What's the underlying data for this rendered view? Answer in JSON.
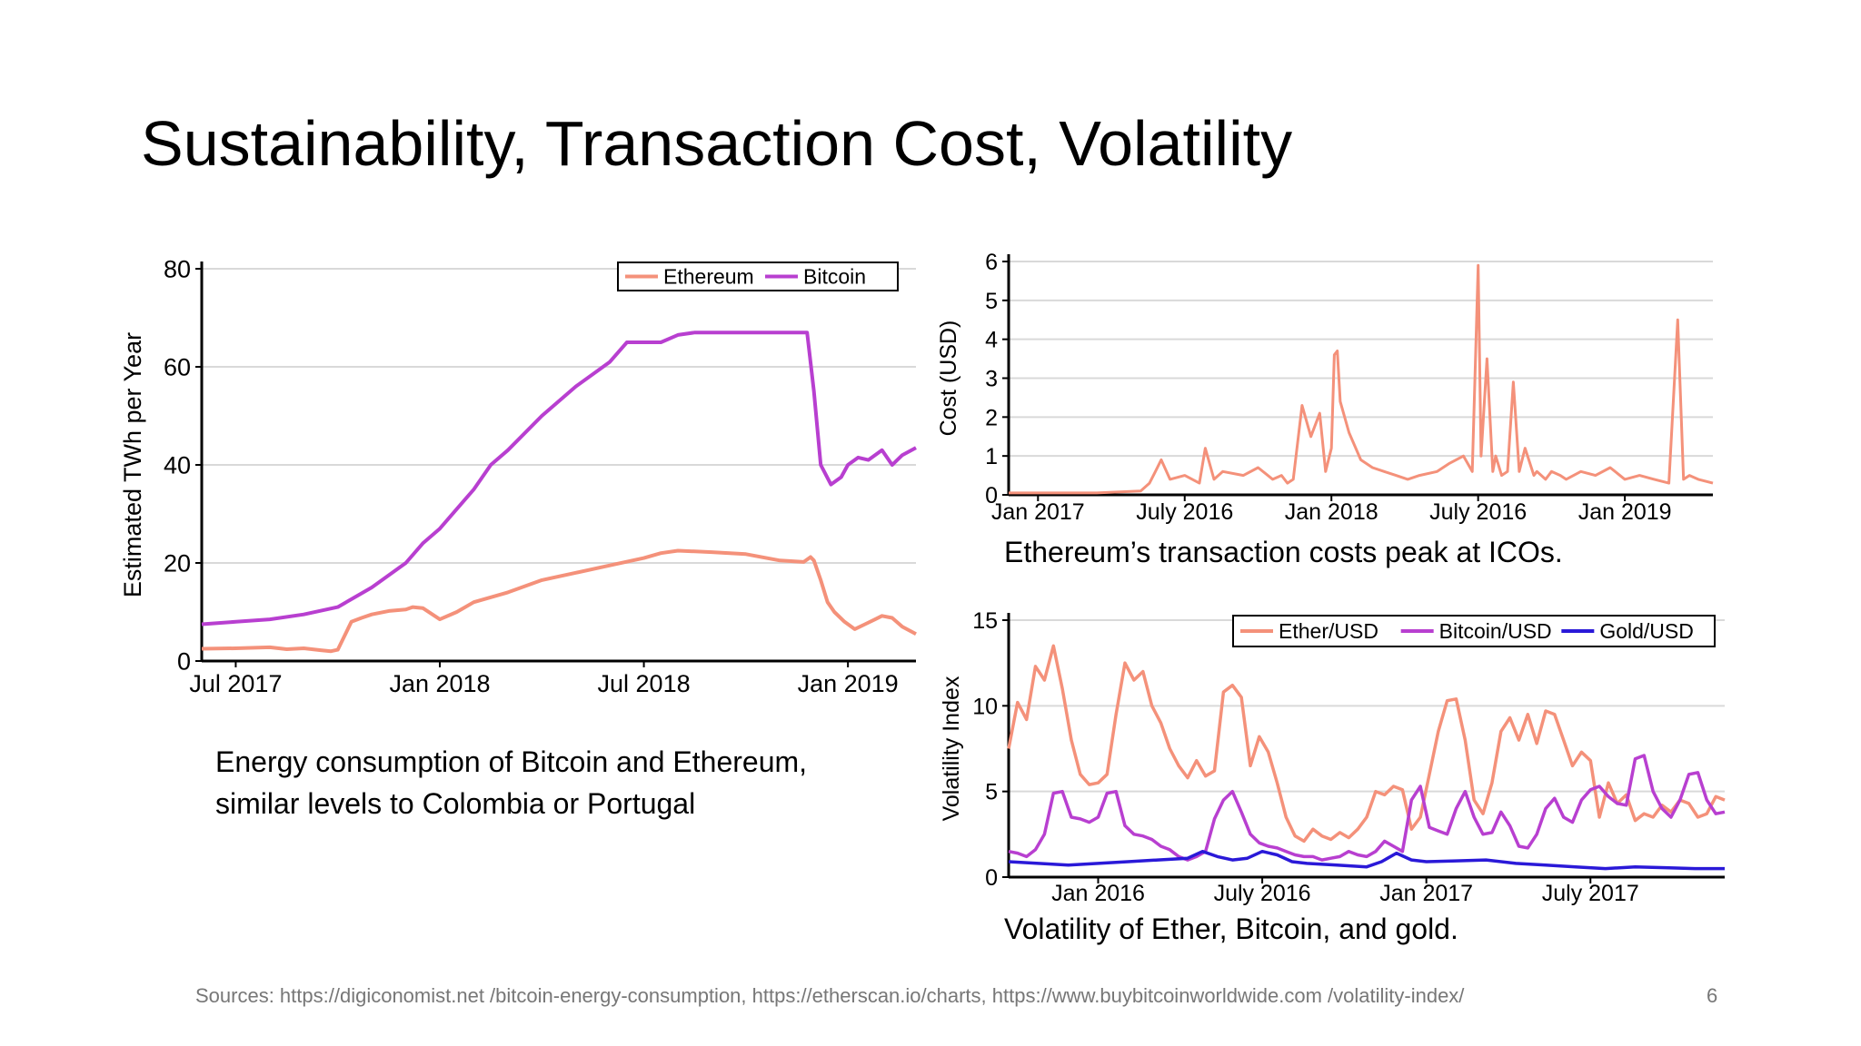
{
  "title": "Sustainability, Transaction Cost, Volatility",
  "captions": {
    "energy": "Energy consumption of Bitcoin and Ethereum, similar levels to Colombia or Portugal",
    "tx": "Ethereum’s transaction costs peak at ICOs.",
    "vol": "Volatility of Ether, Bitcoin, and gold."
  },
  "sources": "Sources: https://digiconomist.net /bitcoin-energy-consumption, https://etherscan.io/charts, https://www.buybitcoinworldwide.com /volatility-index/",
  "page_number": "6",
  "chart_data": [
    {
      "type": "line",
      "ylabel": "Estimated TWh per Year",
      "ylim": [
        0,
        80
      ],
      "yticks": [
        0,
        20,
        40,
        60,
        80
      ],
      "xlim": [
        0,
        21
      ],
      "xtick_labels": [
        {
          "x": 1,
          "label": "Jul 2017"
        },
        {
          "x": 7,
          "label": "Jan 2018"
        },
        {
          "x": 13,
          "label": "Jul 2018"
        },
        {
          "x": 19,
          "label": "Jan 2019"
        }
      ],
      "grid": true,
      "legend": "top-right",
      "series": [
        {
          "name": "Ethereum",
          "color": "#f4917a",
          "x": [
            0,
            1,
            2,
            2.5,
            3,
            3.5,
            3.8,
            4,
            4.4,
            4.7,
            5,
            5.5,
            6,
            6.2,
            6.5,
            7,
            7.5,
            8,
            9,
            10,
            11,
            12,
            13,
            13.5,
            14,
            15,
            16,
            17,
            17.7,
            17.9,
            18,
            18.2,
            18.4,
            18.6,
            18.9,
            19.2,
            19.5,
            19.8,
            20,
            20.3,
            20.6,
            21
          ],
          "y": [
            2.5,
            2.6,
            2.8,
            2.4,
            2.6,
            2.2,
            2.0,
            2.3,
            8,
            8.8,
            9.5,
            10.2,
            10.5,
            11,
            10.8,
            8.5,
            10,
            12,
            14,
            16.5,
            18,
            19.5,
            21,
            22,
            22.5,
            22.2,
            21.8,
            20.5,
            20.2,
            21.2,
            20.5,
            16.5,
            12,
            10,
            8,
            6.5,
            7.5,
            8.5,
            9.2,
            8.8,
            7,
            5.5
          ]
        },
        {
          "name": "Bitcoin",
          "color": "#b83fd0",
          "x": [
            0,
            1,
            2,
            3,
            4,
            5,
            6,
            6.5,
            7,
            7.5,
            8,
            8.5,
            9,
            10,
            11,
            12,
            12.5,
            13,
            13.5,
            14,
            14.5,
            15,
            16,
            17,
            17.8,
            18,
            18.2,
            18.5,
            18.8,
            19,
            19.3,
            19.6,
            20,
            20.3,
            20.6,
            21
          ],
          "y": [
            7.5,
            8,
            8.5,
            9.5,
            11,
            15,
            20,
            24,
            27,
            31,
            35,
            40,
            43,
            50,
            56,
            61,
            65,
            65,
            65,
            66.5,
            67,
            67,
            67,
            67,
            67,
            55,
            40,
            36,
            37.5,
            40,
            41.5,
            41,
            43,
            40,
            42,
            43.5
          ]
        }
      ]
    },
    {
      "type": "line",
      "ylabel": "Cost (USD)",
      "ylim": [
        0,
        6
      ],
      "yticks": [
        0,
        1,
        2,
        3,
        4,
        5,
        6
      ],
      "xlim": [
        0,
        24
      ],
      "xtick_labels": [
        {
          "x": 1,
          "label": "Jan 2017"
        },
        {
          "x": 6,
          "label": "July 2016"
        },
        {
          "x": 11,
          "label": "Jan 2018"
        },
        {
          "x": 16,
          "label": "July 2016"
        },
        {
          "x": 21,
          "label": "Jan 2019"
        }
      ],
      "grid": true,
      "series": [
        {
          "name": "",
          "color": "#f4917a",
          "x": [
            0,
            3,
            4.5,
            4.8,
            5,
            5.2,
            5.5,
            6,
            6.5,
            6.7,
            7,
            7.3,
            8,
            8.5,
            9,
            9.3,
            9.5,
            9.7,
            10,
            10.3,
            10.6,
            10.8,
            11,
            11.1,
            11.2,
            11.3,
            11.6,
            12,
            12.4,
            12.8,
            13.2,
            13.6,
            14,
            14.6,
            15,
            15.5,
            15.8,
            16,
            16.1,
            16.3,
            16.5,
            16.6,
            16.8,
            17,
            17.2,
            17.4,
            17.6,
            17.9,
            18,
            18.3,
            18.5,
            18.8,
            19,
            19.5,
            20,
            20.5,
            21,
            21.5,
            22,
            22.5,
            22.8,
            23,
            23.2,
            23.5,
            24
          ],
          "y": [
            0.05,
            0.05,
            0.1,
            0.3,
            0.6,
            0.9,
            0.4,
            0.5,
            0.3,
            1.2,
            0.4,
            0.6,
            0.5,
            0.7,
            0.4,
            0.5,
            0.3,
            0.4,
            2.3,
            1.5,
            2.1,
            0.6,
            1.2,
            3.6,
            3.7,
            2.4,
            1.6,
            0.9,
            0.7,
            0.6,
            0.5,
            0.4,
            0.5,
            0.6,
            0.8,
            1.0,
            0.6,
            5.9,
            1.0,
            3.5,
            0.6,
            1.0,
            0.5,
            0.6,
            2.9,
            0.6,
            1.2,
            0.5,
            0.6,
            0.4,
            0.6,
            0.5,
            0.4,
            0.6,
            0.5,
            0.7,
            0.4,
            0.5,
            0.4,
            0.3,
            4.5,
            0.4,
            0.5,
            0.4,
            0.3
          ]
        }
      ]
    },
    {
      "type": "line",
      "ylabel": "Volatility Index",
      "ylim": [
        0,
        15
      ],
      "yticks": [
        0,
        5,
        10,
        15
      ],
      "xlim": [
        0,
        24
      ],
      "xtick_labels": [
        {
          "x": 3,
          "label": "Jan 2016"
        },
        {
          "x": 8.5,
          "label": "July 2016"
        },
        {
          "x": 14,
          "label": "Jan 2017"
        },
        {
          "x": 19.5,
          "label": "July 2017"
        }
      ],
      "grid": true,
      "legend": "top-right",
      "series": [
        {
          "name": "Ether/USD",
          "color": "#f4917a",
          "x": [
            0,
            0.3,
            0.6,
            0.9,
            1.2,
            1.5,
            1.8,
            2.1,
            2.4,
            2.7,
            3,
            3.3,
            3.6,
            3.9,
            4.2,
            4.5,
            4.8,
            5.1,
            5.4,
            5.7,
            6,
            6.3,
            6.6,
            6.9,
            7.2,
            7.5,
            7.8,
            8.1,
            8.4,
            8.7,
            9,
            9.3,
            9.6,
            9.9,
            10.2,
            10.5,
            10.8,
            11.1,
            11.4,
            11.7,
            12,
            12.3,
            12.6,
            12.9,
            13.2,
            13.5,
            13.8,
            14.1,
            14.4,
            14.7,
            15,
            15.3,
            15.6,
            15.9,
            16.2,
            16.5,
            16.8,
            17.1,
            17.4,
            17.7,
            18,
            18.3,
            18.6,
            18.9,
            19.2,
            19.5,
            19.8,
            20.1,
            20.4,
            20.7,
            21,
            21.3,
            21.6,
            21.9,
            22.2,
            22.5,
            22.8,
            23.1,
            23.4,
            23.7,
            24
          ],
          "y": [
            7.5,
            10.2,
            9.2,
            12.3,
            11.5,
            13.5,
            11,
            8,
            6,
            5.4,
            5.5,
            6,
            9.5,
            12.5,
            11.5,
            12,
            10,
            9,
            7.5,
            6.5,
            5.8,
            6.8,
            5.9,
            6.2,
            10.8,
            11.2,
            10.5,
            6.5,
            8.2,
            7.3,
            5.5,
            3.5,
            2.4,
            2.1,
            2.8,
            2.4,
            2.2,
            2.6,
            2.3,
            2.8,
            3.5,
            5,
            4.8,
            5.3,
            5.1,
            2.8,
            3.5,
            6,
            8.5,
            10.3,
            10.4,
            8,
            4.5,
            3.7,
            5.5,
            8.5,
            9.3,
            8,
            9.5,
            7.8,
            9.7,
            9.5,
            8,
            6.5,
            7.3,
            6.8,
            3.5,
            5.5,
            4.3,
            4.8,
            3.3,
            3.7,
            3.5,
            4.2,
            3.8,
            4.5,
            4.3,
            3.5,
            3.7,
            4.7,
            4.5
          ]
        },
        {
          "name": "Bitcoin/USD",
          "color": "#b83fd0",
          "x": [
            0,
            0.3,
            0.6,
            0.9,
            1.2,
            1.5,
            1.8,
            2.1,
            2.4,
            2.7,
            3,
            3.3,
            3.6,
            3.9,
            4.2,
            4.5,
            4.8,
            5.1,
            5.4,
            5.7,
            6,
            6.3,
            6.6,
            6.9,
            7.2,
            7.5,
            7.8,
            8.1,
            8.4,
            8.7,
            9,
            9.3,
            9.6,
            9.9,
            10.2,
            10.5,
            10.8,
            11.1,
            11.4,
            11.7,
            12,
            12.3,
            12.6,
            12.9,
            13.2,
            13.5,
            13.8,
            14.1,
            14.4,
            14.7,
            15,
            15.3,
            15.6,
            15.9,
            16.2,
            16.5,
            16.8,
            17.1,
            17.4,
            17.7,
            18,
            18.3,
            18.6,
            18.9,
            19.2,
            19.5,
            19.8,
            20.1,
            20.4,
            20.7,
            21,
            21.3,
            21.6,
            21.9,
            22.2,
            22.5,
            22.8,
            23.1,
            23.4,
            23.7,
            24
          ],
          "y": [
            1.5,
            1.4,
            1.2,
            1.6,
            2.5,
            4.9,
            5,
            3.5,
            3.4,
            3.2,
            3.5,
            4.9,
            5,
            3,
            2.5,
            2.4,
            2.2,
            1.8,
            1.6,
            1.2,
            1.0,
            1.2,
            1.5,
            3.4,
            4.5,
            5,
            3.8,
            2.5,
            2,
            1.8,
            1.7,
            1.5,
            1.3,
            1.2,
            1.2,
            1.0,
            1.1,
            1.2,
            1.5,
            1.3,
            1.2,
            1.5,
            2.1,
            1.8,
            1.5,
            4.5,
            5.3,
            2.9,
            2.7,
            2.5,
            4.0,
            5,
            3.5,
            2.5,
            2.6,
            3.8,
            3,
            1.8,
            1.7,
            2.5,
            4,
            4.6,
            3.5,
            3.2,
            4.5,
            5.1,
            5.3,
            4.7,
            4.3,
            4.2,
            6.9,
            7.1,
            5,
            4,
            3.5,
            4.5,
            6,
            6.1,
            4.5,
            3.7,
            3.8
          ]
        },
        {
          "name": "Gold/USD",
          "color": "#2a19d8",
          "x": [
            0,
            1,
            2,
            3,
            4,
            5,
            6,
            6.5,
            7,
            7.5,
            8,
            8.5,
            9,
            9.5,
            10,
            11,
            12,
            12.5,
            13,
            13.5,
            14,
            15,
            16,
            17,
            18,
            19,
            20,
            21,
            22,
            23,
            24
          ],
          "y": [
            0.9,
            0.8,
            0.7,
            0.8,
            0.9,
            1.0,
            1.1,
            1.5,
            1.2,
            1.0,
            1.1,
            1.5,
            1.3,
            0.9,
            0.8,
            0.7,
            0.6,
            0.9,
            1.4,
            1.0,
            0.9,
            0.95,
            1.0,
            0.8,
            0.7,
            0.6,
            0.5,
            0.6,
            0.55,
            0.5,
            0.5
          ]
        }
      ]
    }
  ]
}
